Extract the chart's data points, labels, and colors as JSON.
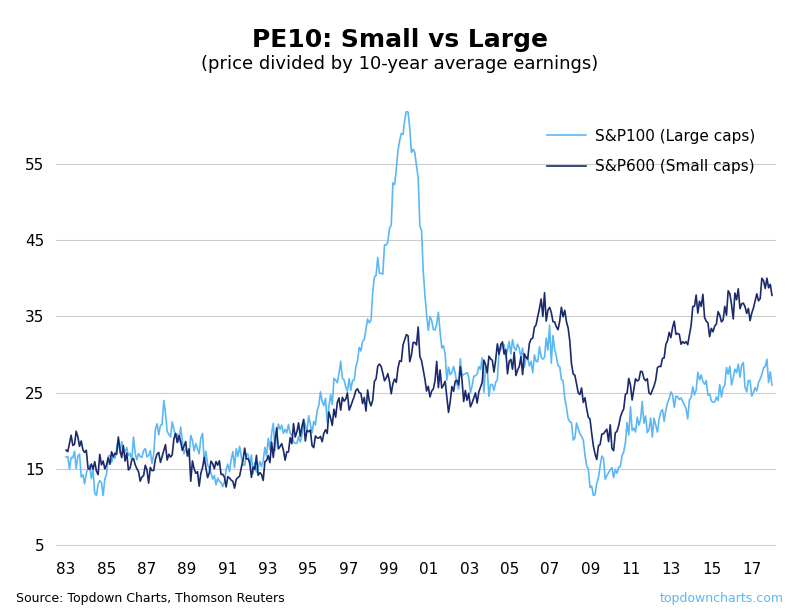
{
  "title": "PE10: Small vs Large",
  "subtitle": "(price divided by 10-year average earnings)",
  "source_left": "Source: Topdown Charts, Thomson Reuters",
  "source_right": "topdowncharts.com",
  "sp600_color": "#1a2a6c",
  "sp100_color": "#5bb8f5",
  "sp600_label": "S&P600 (Small caps)",
  "sp100_label": "S&P100 (Large caps)",
  "yticks": [
    5,
    15,
    25,
    35,
    45,
    55
  ],
  "xtick_labels": [
    "83",
    "85",
    "87",
    "89",
    "91",
    "93",
    "95",
    "97",
    "99",
    "01",
    "03",
    "05",
    "07",
    "09",
    "11",
    "13",
    "15",
    "17"
  ],
  "ylim": [
    4,
    62
  ],
  "background": "#ffffff",
  "title_fontsize": 18,
  "subtitle_fontsize": 13
}
